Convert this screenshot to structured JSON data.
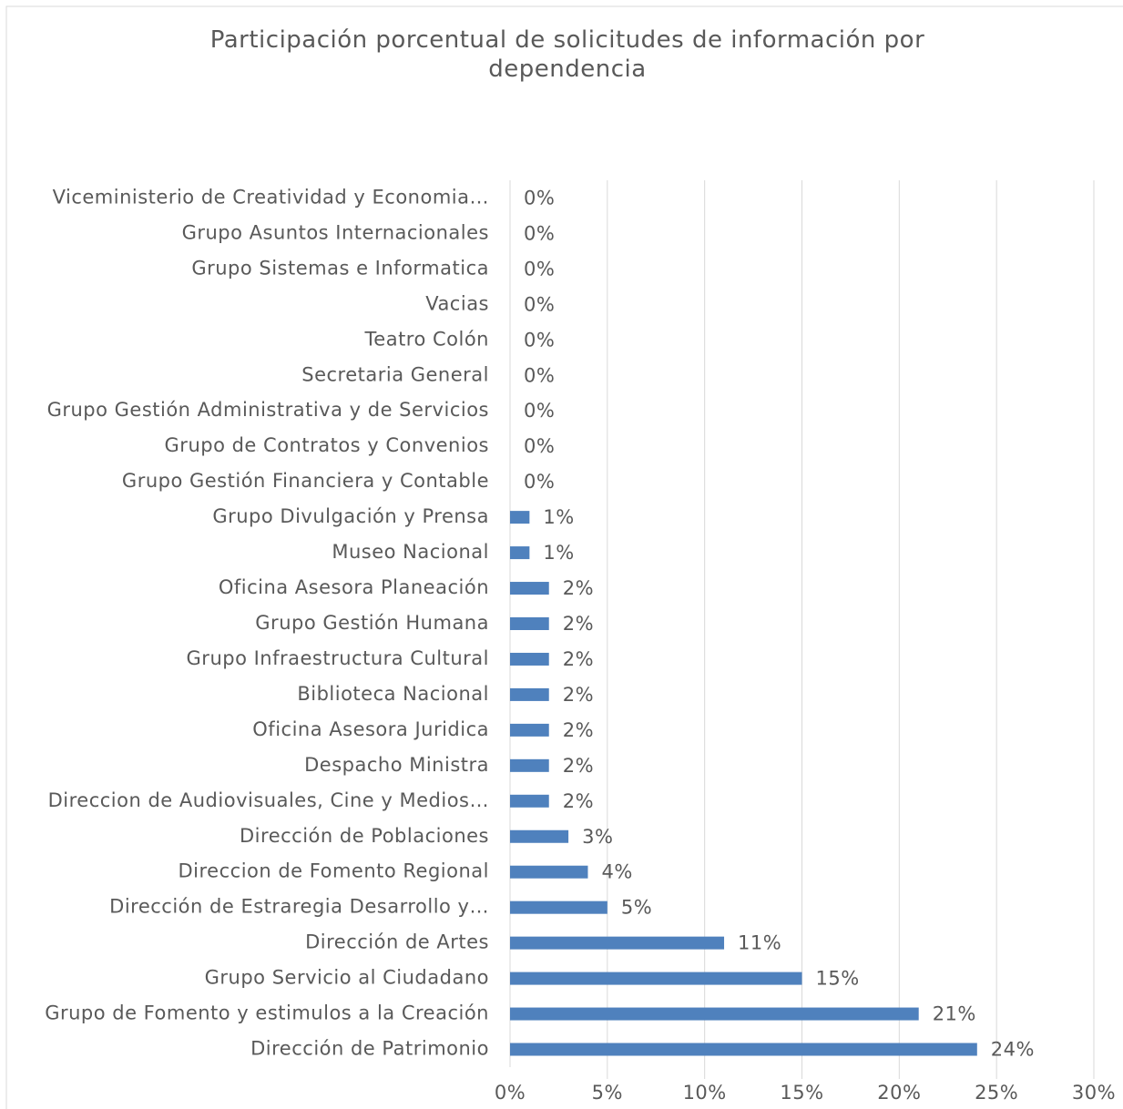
{
  "chart_data": {
    "type": "bar",
    "orientation": "horizontal",
    "title": "Participación porcentual de solicitudes de información por dependencia",
    "categories": [
      "Viceministerio de Creatividad y Economia…",
      "Grupo Asuntos Internacionales",
      "Grupo Sistemas e Informatica",
      "Vacias",
      "Teatro Colón",
      "Secretaria General",
      "Grupo Gestión Administrativa y de Servicios",
      "Grupo de Contratos y Convenios",
      "Grupo Gestión Financiera y Contable",
      "Grupo Divulgación y Prensa",
      "Museo Nacional",
      "Oficina Asesora Planeación",
      "Grupo Gestión Humana",
      "Grupo Infraestructura Cultural",
      "Biblioteca Nacional",
      "Oficina Asesora Juridica",
      "Despacho Ministra",
      "Direccion de Audiovisuales, Cine y Medios…",
      "Dirección de Poblaciones",
      "Direccion de Fomento Regional",
      "Dirección de Estraregia Desarrollo y…",
      "Dirección de Artes",
      "Grupo Servicio al Ciudadano",
      "Grupo de Fomento y estimulos a la Creación",
      "Dirección de Patrimonio"
    ],
    "values": [
      0,
      0,
      0,
      0,
      0,
      0,
      0,
      0,
      0,
      1,
      1,
      2,
      2,
      2,
      2,
      2,
      2,
      2,
      3,
      4,
      5,
      11,
      15,
      21,
      24
    ],
    "value_labels": [
      "0%",
      "0%",
      "0%",
      "0%",
      "0%",
      "0%",
      "0%",
      "0%",
      "0%",
      "1%",
      "1%",
      "2%",
      "2%",
      "2%",
      "2%",
      "2%",
      "2%",
      "2%",
      "3%",
      "4%",
      "5%",
      "11%",
      "15%",
      "21%",
      "24%"
    ],
    "color": "#4f81bd",
    "xlim": [
      0,
      30
    ],
    "xticks": [
      {
        "value": 0,
        "label": "0%"
      },
      {
        "value": 5,
        "label": "5%"
      },
      {
        "value": 10,
        "label": "10%"
      },
      {
        "value": 15,
        "label": "15%"
      },
      {
        "value": 20,
        "label": "20%"
      },
      {
        "value": 25,
        "label": "25%"
      },
      {
        "value": 30,
        "label": "30%"
      }
    ],
    "grid": true
  }
}
